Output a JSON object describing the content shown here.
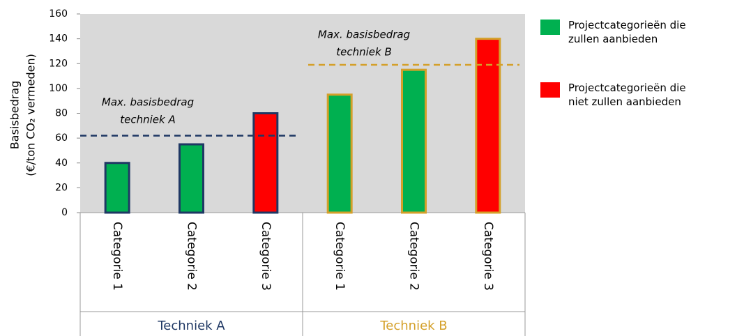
{
  "chart_data": {
    "type": "bar",
    "ylabel": [
      "Basisbedrag",
      "(€/ton CO₂ vermeden)"
    ],
    "ylim": [
      0,
      160
    ],
    "yticks": [
      0,
      20,
      40,
      60,
      80,
      100,
      120,
      140,
      160
    ],
    "series": [
      {
        "name": "Projectcategorieën die zullen aanbieden",
        "color": "#00b050"
      },
      {
        "name": "Projectcategorieën die niet zullen aanbieden",
        "color": "#ff0000"
      }
    ],
    "groups": [
      {
        "name": "Techniek A",
        "color": "#1f3864",
        "categories": [
          "Categorie 1",
          "Categorie 2",
          "Categorie 3"
        ],
        "values": [
          40,
          55,
          80
        ],
        "bar_colors": [
          "#00b050",
          "#00b050",
          "#ff0000"
        ],
        "threshold": 62,
        "threshold_label": [
          "Max. basisbedrag",
          "techniek A"
        ]
      },
      {
        "name": "Techniek B",
        "color": "#d4a02a",
        "categories": [
          "Categorie 1",
          "Categorie 2",
          "Categorie 3"
        ],
        "values": [
          95,
          115,
          140
        ],
        "bar_colors": [
          "#00b050",
          "#00b050",
          "#ff0000"
        ],
        "threshold": 119,
        "threshold_label": [
          "Max. basisbedrag",
          "techniek B"
        ]
      }
    ]
  }
}
